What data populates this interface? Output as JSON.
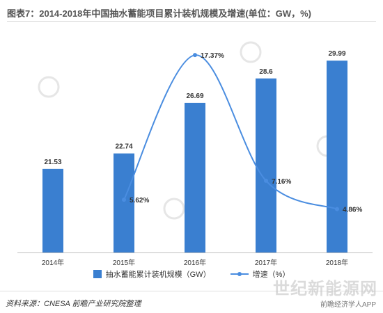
{
  "title": "图表7：2014-2018年中国抽水蓄能项目累计装机规模及增速(单位：GW，%)",
  "source": "资料来源：CNESA 前瞻产业研究院整理",
  "watermark": {
    "logo_text": "世纪新能源网",
    "app_text": "前瞻经济学人APP"
  },
  "colors": {
    "bar": "#3a7fd0",
    "line": "#4a8de0",
    "title": "#555555"
  },
  "chart_data": {
    "type": "bar",
    "categories": [
      "2014年",
      "2015年",
      "2016年",
      "2017年",
      "2018年"
    ],
    "series": [
      {
        "name": "抽水蓄能累计装机规模（GW）",
        "type": "bar",
        "values": [
          21.53,
          22.74,
          26.69,
          28.6,
          29.99
        ],
        "labels": [
          "21.53",
          "22.74",
          "26.69",
          "28.6",
          "29.99"
        ]
      },
      {
        "name": "增速（%）",
        "type": "line",
        "smooth": true,
        "values": [
          null,
          5.62,
          17.37,
          7.16,
          4.86
        ],
        "labels": [
          "",
          "5.62%",
          "17.37%",
          "7.16%",
          "4.86%"
        ]
      }
    ],
    "legend_position": "bottom",
    "grid": false
  }
}
